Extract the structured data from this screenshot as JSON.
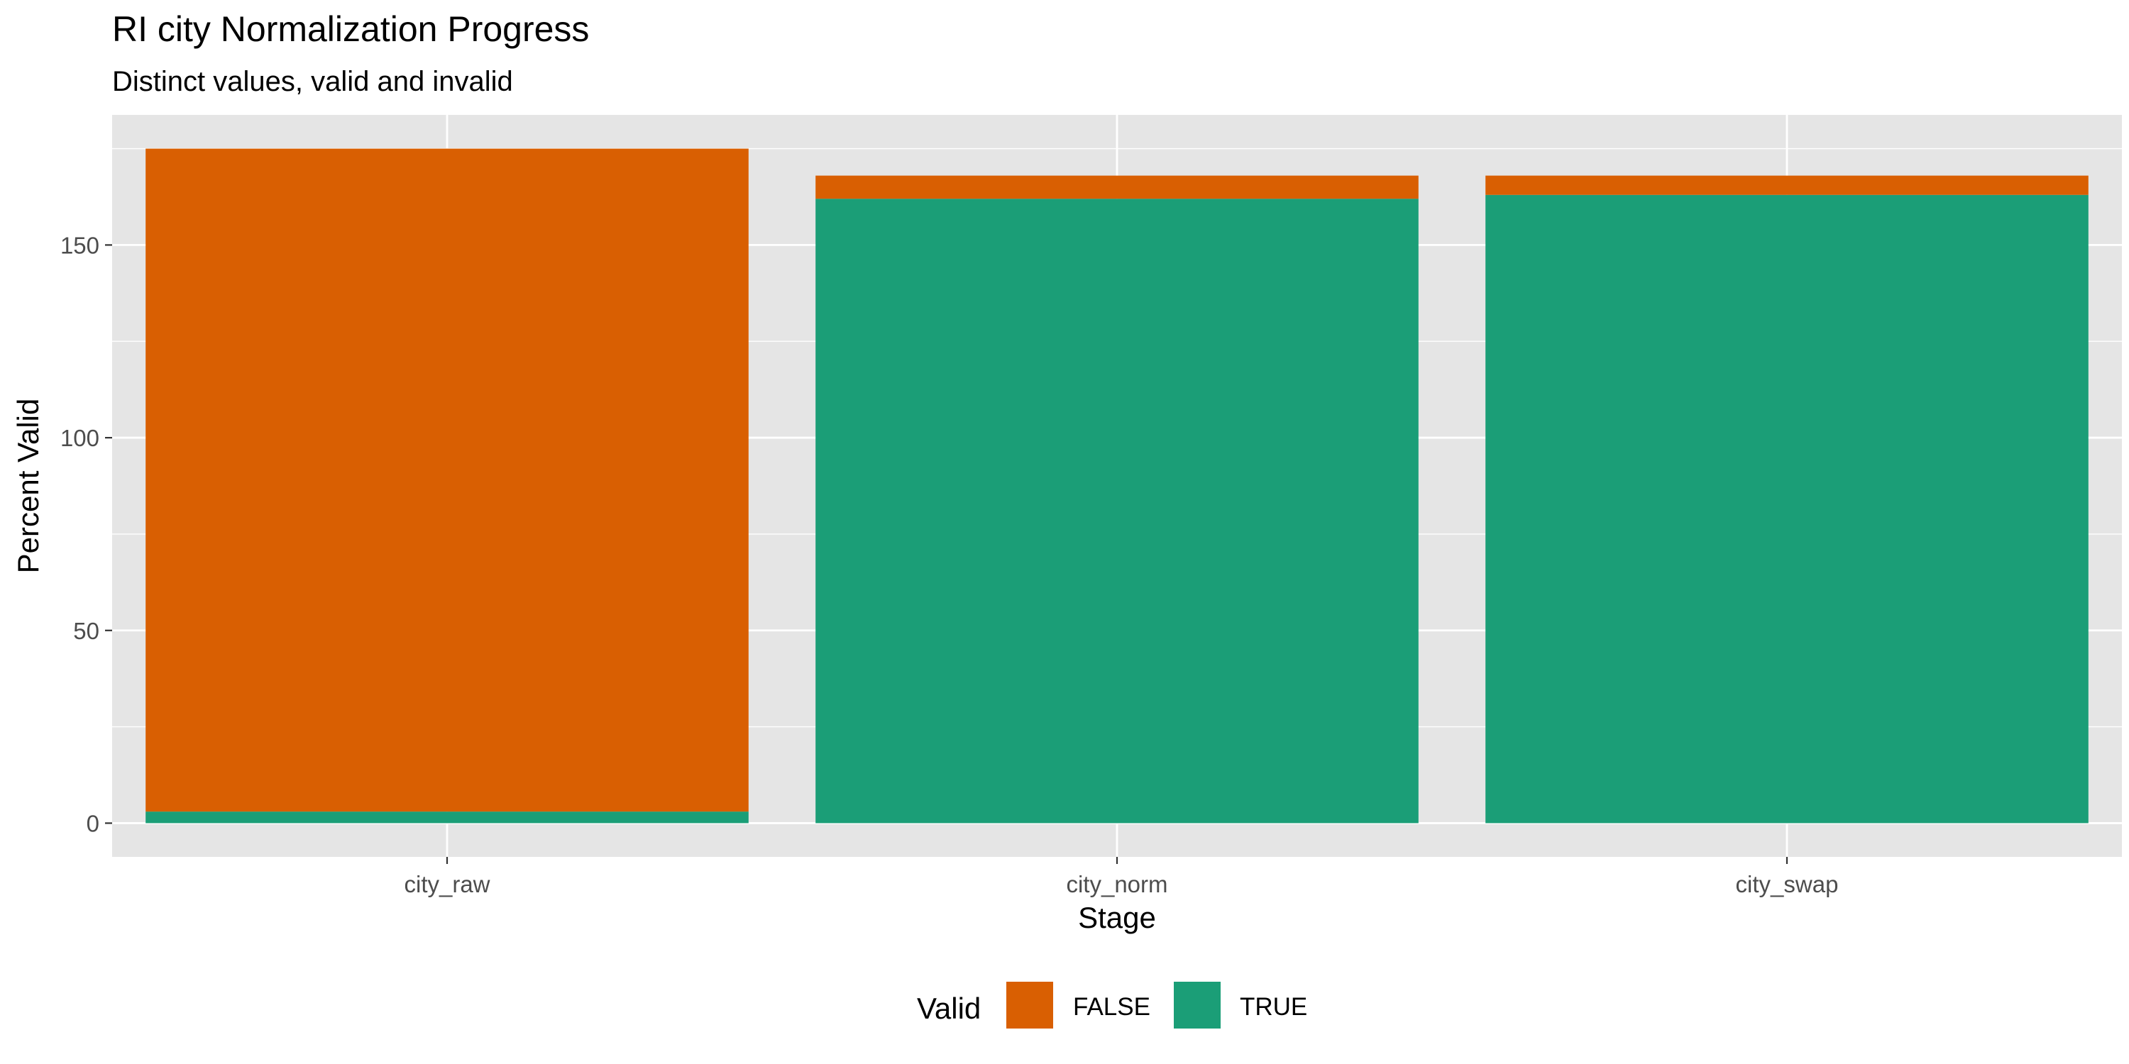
{
  "chart_data": {
    "type": "bar",
    "stacked": true,
    "title": "RI city Normalization Progress",
    "subtitle": "Distinct values, valid and invalid",
    "xlabel": "Stage",
    "ylabel": "Percent Valid",
    "categories": [
      "city_raw",
      "city_norm",
      "city_swap"
    ],
    "series": [
      {
        "name": "TRUE",
        "color": "#1B9E77",
        "values": [
          3,
          162,
          163
        ]
      },
      {
        "name": "FALSE",
        "color": "#D95F02",
        "values": [
          172,
          6,
          5
        ]
      }
    ],
    "ylim": [
      -8.75,
      183.75
    ],
    "yticks": [
      0,
      50,
      100,
      150
    ],
    "grid": true,
    "legend": {
      "title": "Valid",
      "position": "bottom",
      "entries": [
        {
          "label": "FALSE",
          "color": "#D95F02"
        },
        {
          "label": "TRUE",
          "color": "#1B9E77"
        }
      ]
    }
  }
}
